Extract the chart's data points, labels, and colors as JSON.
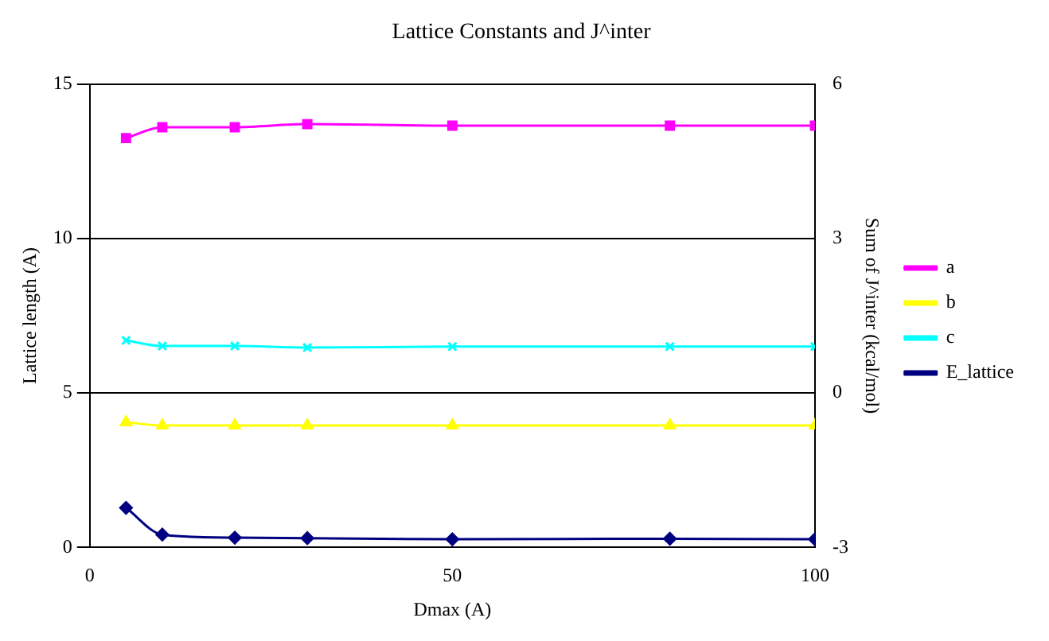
{
  "chart_data": {
    "type": "line",
    "title": "Lattice Constants and J^inter",
    "xlabel": "Dmax (A)",
    "ylabel": "Lattice length (A)",
    "y2label": "Sum of J^inter (kcal/mol)",
    "x": [
      5,
      10,
      20,
      30,
      50,
      80,
      100
    ],
    "series": [
      {
        "name": "a",
        "color": "#ff00ff",
        "marker": "square",
        "values": [
          13.25,
          13.6,
          13.6,
          13.7,
          13.65,
          13.65,
          13.65
        ]
      },
      {
        "name": "b",
        "color": "#ffff00",
        "marker": "triangle",
        "values": [
          4.05,
          3.95,
          3.95,
          3.95,
          3.95,
          3.95,
          3.95
        ]
      },
      {
        "name": "c",
        "color": "#00ffff",
        "marker": "cross",
        "values": [
          6.7,
          6.52,
          6.52,
          6.47,
          6.5,
          6.5,
          6.5
        ]
      },
      {
        "name": "E_lattice",
        "color": "#000080",
        "marker": "diamond",
        "axis": "y2",
        "values": [
          -2.23,
          -2.75,
          -2.81,
          -2.82,
          -2.84,
          -2.83,
          -2.84
        ]
      }
    ],
    "xlim": [
      0,
      100
    ],
    "xticks": [
      0,
      50,
      100
    ],
    "ylim": [
      0,
      15
    ],
    "yticks": [
      0,
      5,
      10,
      15
    ],
    "y2lim": [
      -3,
      6
    ],
    "y2ticks": [
      -3,
      0,
      3,
      6
    ],
    "grid": "y",
    "legend": "right"
  }
}
